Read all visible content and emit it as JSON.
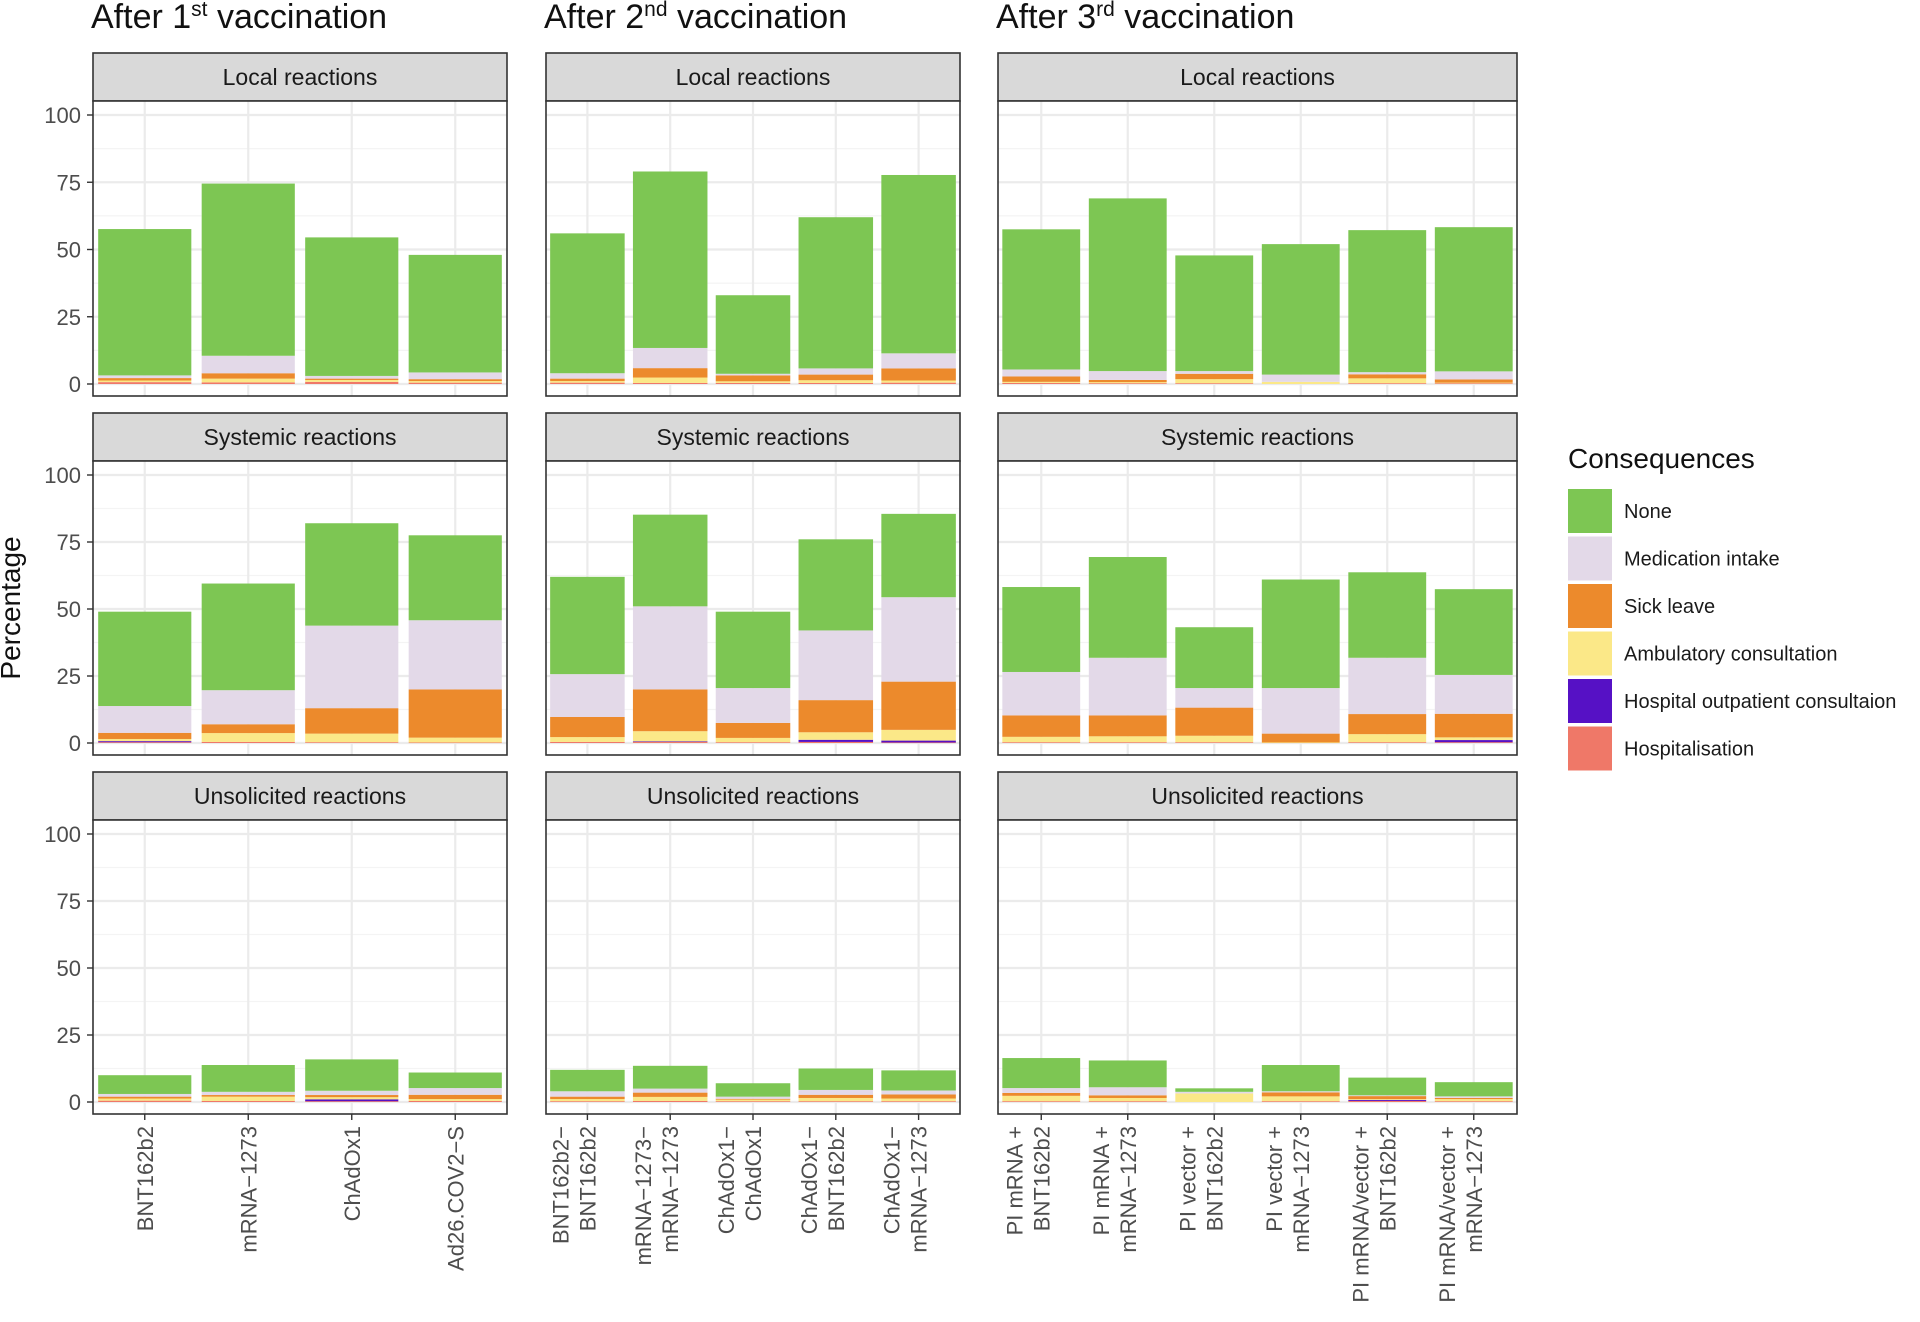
{
  "chart_data": {
    "type": "bar",
    "stacked": true,
    "ylabel": "Percentage",
    "ylim": [
      0,
      100
    ],
    "yticks": [
      0,
      25,
      50,
      75,
      100
    ],
    "legend": {
      "title": "Consequences",
      "position": "right",
      "entries": [
        {
          "key": "none",
          "label": "None",
          "color": "#7dc653"
        },
        {
          "key": "medication",
          "label": "Medication intake",
          "color": "#e3d9e8"
        },
        {
          "key": "sick",
          "label": "Sick leave",
          "color": "#ec8a2c"
        },
        {
          "key": "ambulatory",
          "label": "Ambulatory consultation",
          "color": "#fbe888"
        },
        {
          "key": "outpatient",
          "label": "Hospital outpatient consultaion",
          "color": "#5611c5"
        },
        {
          "key": "hosp",
          "label": "Hospitalisation",
          "color": "#ef7868"
        }
      ]
    },
    "stack_order": [
      "hosp",
      "outpatient",
      "ambulatory",
      "sick",
      "medication",
      "none"
    ],
    "columns": [
      {
        "title_pre": "After 1",
        "title_sup": "st",
        "title_post": " vaccination",
        "categories": [
          [
            "BNT162b2"
          ],
          [
            "mRNA−1273"
          ],
          [
            "ChAdOx1"
          ],
          [
            "Ad26.COV2−S"
          ]
        ],
        "rows": [
          {
            "facet": "Local reactions",
            "bars": [
              {
                "hosp": 0.7,
                "outpatient": 0,
                "ambulatory": 0.6,
                "sick": 0.9,
                "medication": 1.0,
                "none": 54.4
              },
              {
                "hosp": 0.6,
                "outpatient": 0,
                "ambulatory": 1.4,
                "sick": 2.0,
                "medication": 6.5,
                "none": 64.0
              },
              {
                "hosp": 0.8,
                "outpatient": 0,
                "ambulatory": 0.7,
                "sick": 0.5,
                "medication": 1.0,
                "none": 51.5
              },
              {
                "hosp": 0.5,
                "outpatient": 0,
                "ambulatory": 0.6,
                "sick": 0.7,
                "medication": 2.5,
                "none": 43.7
              }
            ]
          },
          {
            "facet": "Systemic reactions",
            "bars": [
              {
                "hosp": 0.3,
                "outpatient": 0.4,
                "ambulatory": 0.8,
                "sick": 2.3,
                "medication": 10.0,
                "none": 35.2
              },
              {
                "hosp": 0.4,
                "outpatient": 0,
                "ambulatory": 3.3,
                "sick": 3.3,
                "medication": 12.7,
                "none": 39.8
              },
              {
                "hosp": 0.3,
                "outpatient": 0,
                "ambulatory": 3.2,
                "sick": 9.5,
                "medication": 30.8,
                "none": 38.2
              },
              {
                "hosp": 0.2,
                "outpatient": 0,
                "ambulatory": 1.8,
                "sick": 18.0,
                "medication": 25.8,
                "none": 31.7
              }
            ]
          },
          {
            "facet": "Unsolicited reactions",
            "bars": [
              {
                "hosp": 0.5,
                "outpatient": 0,
                "ambulatory": 0.8,
                "sick": 0.7,
                "medication": 1.0,
                "none": 7.0
              },
              {
                "hosp": 0.4,
                "outpatient": 0,
                "ambulatory": 1.6,
                "sick": 0.6,
                "medication": 1.2,
                "none": 10.0
              },
              {
                "hosp": 0.3,
                "outpatient": 0.7,
                "ambulatory": 0.8,
                "sick": 0.8,
                "medication": 1.6,
                "none": 11.7
              },
              {
                "hosp": 0.4,
                "outpatient": 0,
                "ambulatory": 0.7,
                "sick": 1.6,
                "medication": 2.5,
                "none": 5.8
              }
            ]
          }
        ]
      },
      {
        "title_pre": "After 2",
        "title_sup": "nd",
        "title_post": " vaccination",
        "categories": [
          [
            "BNT162b2−",
            "BNT162b2"
          ],
          [
            "mRNA−1273−",
            "mRNA−1273"
          ],
          [
            "ChAdOx1−",
            "ChAdOx1"
          ],
          [
            "ChAdOx1−",
            "BNT162b2"
          ],
          [
            "ChAdOx1−",
            "mRNA−1273"
          ]
        ],
        "rows": [
          {
            "facet": "Local reactions",
            "bars": [
              {
                "hosp": 0.5,
                "outpatient": 0,
                "ambulatory": 0.6,
                "sick": 0.9,
                "medication": 2.0,
                "none": 52.0
              },
              {
                "hosp": 0.4,
                "outpatient": 0,
                "ambulatory": 2.0,
                "sick": 3.5,
                "medication": 7.5,
                "none": 65.6
              },
              {
                "hosp": 0.4,
                "outpatient": 0,
                "ambulatory": 0.6,
                "sick": 2.2,
                "medication": 0.6,
                "none": 29.2
              },
              {
                "hosp": 0.4,
                "outpatient": 0,
                "ambulatory": 1.0,
                "sick": 2.1,
                "medication": 2.3,
                "none": 56.2
              },
              {
                "hosp": 0.5,
                "outpatient": 0,
                "ambulatory": 0.8,
                "sick": 4.5,
                "medication": 5.6,
                "none": 66.3
              }
            ]
          },
          {
            "facet": "Systemic reactions",
            "bars": [
              {
                "hosp": 0.4,
                "outpatient": 0,
                "ambulatory": 1.8,
                "sick": 7.5,
                "medication": 16.0,
                "none": 36.3
              },
              {
                "hosp": 0.4,
                "outpatient": 0.2,
                "ambulatory": 3.8,
                "sick": 15.6,
                "medication": 31.0,
                "none": 34.2
              },
              {
                "hosp": 0.3,
                "outpatient": 0,
                "ambulatory": 1.6,
                "sick": 5.6,
                "medication": 13.0,
                "none": 28.5
              },
              {
                "hosp": 0.4,
                "outpatient": 0.8,
                "ambulatory": 2.8,
                "sick": 12.0,
                "medication": 26.0,
                "none": 34.0
              },
              {
                "hosp": 0.2,
                "outpatient": 0.7,
                "ambulatory": 4.0,
                "sick": 18.0,
                "medication": 31.5,
                "none": 31.1
              }
            ]
          },
          {
            "facet": "Unsolicited reactions",
            "bars": [
              {
                "hosp": 0.3,
                "outpatient": 0,
                "ambulatory": 0.8,
                "sick": 0.9,
                "medication": 2.0,
                "none": 8.0
              },
              {
                "hosp": 0.4,
                "outpatient": 0,
                "ambulatory": 1.5,
                "sick": 1.6,
                "medication": 1.5,
                "none": 8.5
              },
              {
                "hosp": 0.3,
                "outpatient": 0,
                "ambulatory": 0.6,
                "sick": 0.3,
                "medication": 0.8,
                "none": 5.0
              },
              {
                "hosp": 0.3,
                "outpatient": 0,
                "ambulatory": 1.2,
                "sick": 1.2,
                "medication": 1.8,
                "none": 8.0
              },
              {
                "hosp": 0.3,
                "outpatient": 0,
                "ambulatory": 1.0,
                "sick": 1.5,
                "medication": 1.5,
                "none": 7.5
              }
            ]
          }
        ]
      },
      {
        "title_pre": "After 3",
        "title_sup": "rd",
        "title_post": " vaccination",
        "categories": [
          [
            "PI mRNA +",
            "BNT162b2"
          ],
          [
            "PI mRNA +",
            "mRNA−1273"
          ],
          [
            "PI vector +",
            "BNT162b2"
          ],
          [
            "PI vector +",
            "mRNA−1273"
          ],
          [
            "PI mRNA/vector +",
            "BNT162b2"
          ],
          [
            "PI mRNA/vector +",
            "mRNA−1273"
          ]
        ],
        "rows": [
          {
            "facet": "Local reactions",
            "bars": [
              {
                "hosp": 0.4,
                "outpatient": 0,
                "ambulatory": 0.4,
                "sick": 2.0,
                "medication": 2.6,
                "none": 52.1
              },
              {
                "hosp": 0.3,
                "outpatient": 0,
                "ambulatory": 0.4,
                "sick": 0.8,
                "medication": 3.3,
                "none": 64.2
              },
              {
                "hosp": 0.3,
                "outpatient": 0,
                "ambulatory": 1.5,
                "sick": 2.0,
                "medication": 1.0,
                "none": 43.0
              },
              {
                "hosp": 0,
                "outpatient": 0,
                "ambulatory": 0.8,
                "sick": 0,
                "medication": 2.7,
                "none": 48.5
              },
              {
                "hosp": 0.3,
                "outpatient": 0,
                "ambulatory": 1.8,
                "sick": 1.5,
                "medication": 0.8,
                "none": 52.8
              },
              {
                "hosp": 0.3,
                "outpatient": 0,
                "ambulatory": 0.2,
                "sick": 1.2,
                "medication": 3.0,
                "none": 53.6
              }
            ]
          },
          {
            "facet": "Systemic reactions",
            "bars": [
              {
                "hosp": 0.3,
                "outpatient": 0,
                "ambulatory": 2.0,
                "sick": 8.0,
                "medication": 16.2,
                "none": 31.7
              },
              {
                "hosp": 0.3,
                "outpatient": 0,
                "ambulatory": 2.2,
                "sick": 7.8,
                "medication": 21.5,
                "none": 37.6
              },
              {
                "hosp": 0.3,
                "outpatient": 0,
                "ambulatory": 2.4,
                "sick": 10.5,
                "medication": 7.3,
                "none": 22.7
              },
              {
                "hosp": 0,
                "outpatient": 0,
                "ambulatory": 0.2,
                "sick": 3.3,
                "medication": 17.0,
                "none": 40.5
              },
              {
                "hosp": 0.3,
                "outpatient": 0,
                "ambulatory": 3.0,
                "sick": 7.5,
                "medication": 21.0,
                "none": 31.9
              },
              {
                "hosp": 0.3,
                "outpatient": 0.8,
                "ambulatory": 1.0,
                "sick": 8.8,
                "medication": 14.5,
                "none": 32.0
              }
            ]
          },
          {
            "facet": "Unsolicited reactions",
            "bars": [
              {
                "hosp": 0.3,
                "outpatient": 0,
                "ambulatory": 2.0,
                "sick": 1.1,
                "medication": 1.8,
                "none": 11.2
              },
              {
                "hosp": 0.3,
                "outpatient": 0,
                "ambulatory": 1.2,
                "sick": 1.0,
                "medication": 3.0,
                "none": 10.0
              },
              {
                "hosp": 0,
                "outpatient": 0,
                "ambulatory": 3.2,
                "sick": 0,
                "medication": 0.6,
                "none": 1.3
              },
              {
                "hosp": 0.3,
                "outpatient": 0,
                "ambulatory": 1.8,
                "sick": 1.5,
                "medication": 0.4,
                "none": 9.8
              },
              {
                "hosp": 0.4,
                "outpatient": 0.4,
                "ambulatory": 0.3,
                "sick": 1.1,
                "medication": 0.3,
                "none": 6.6
              },
              {
                "hosp": 0.3,
                "outpatient": 0,
                "ambulatory": 0.8,
                "sick": 0.4,
                "medication": 0.6,
                "none": 5.3
              }
            ]
          }
        ]
      }
    ]
  }
}
